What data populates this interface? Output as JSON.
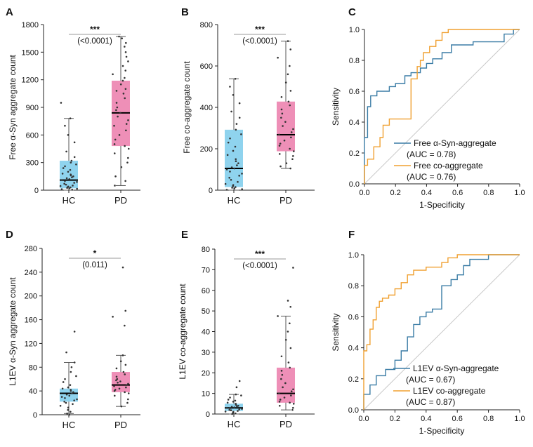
{
  "colors": {
    "hc_box": "#8fd3ee",
    "pd_box": "#ee8fb7",
    "roc_blue": "#3a7ca5",
    "roc_orange": "#f0a030",
    "axis": "#222222",
    "diag": "#c8c8c8",
    "dots": "#333333"
  },
  "chart_data": [
    {
      "id": "A",
      "type": "box",
      "panel_label": "A",
      "ylabel": "Free α-Syn aggregate count",
      "ylim": [
        0,
        1800
      ],
      "yticks": [
        0,
        300,
        600,
        900,
        1200,
        1500,
        1800
      ],
      "ytick_labels": [
        "0",
        "300",
        "600",
        "900",
        "1200",
        "1500",
        "1800"
      ],
      "categories": [
        "HC",
        "PD"
      ],
      "groups": [
        {
          "name": "HC",
          "min": 0,
          "q1": 20,
          "median": 110,
          "q3": 320,
          "max": 780,
          "points": [
            5,
            10,
            15,
            20,
            25,
            30,
            35,
            40,
            45,
            50,
            60,
            70,
            80,
            90,
            100,
            110,
            120,
            130,
            140,
            150,
            160,
            170,
            180,
            200,
            220,
            240,
            260,
            280,
            300,
            320,
            360,
            420,
            520,
            600,
            700,
            780,
            950
          ]
        },
        {
          "name": "PD",
          "min": 50,
          "q1": 480,
          "median": 840,
          "q3": 1190,
          "max": 1670,
          "points": [
            50,
            100,
            150,
            250,
            300,
            350,
            400,
            450,
            480,
            500,
            550,
            600,
            650,
            700,
            720,
            760,
            800,
            840,
            870,
            900,
            950,
            1000,
            1050,
            1080,
            1100,
            1150,
            1190,
            1220,
            1260,
            1300,
            1350,
            1400,
            1450,
            1500,
            1560,
            1600,
            1650,
            1670
          ]
        }
      ],
      "significance": {
        "stars": "***",
        "p": "(<0.0001)"
      }
    },
    {
      "id": "B",
      "type": "box",
      "panel_label": "B",
      "ylabel": "Free co-aggregate count",
      "ylim": [
        0,
        800
      ],
      "yticks": [
        0,
        200,
        400,
        600,
        800
      ],
      "ytick_labels": [
        "0",
        "200",
        "400",
        "600",
        "800"
      ],
      "categories": [
        "HC",
        "PD"
      ],
      "groups": [
        {
          "name": "HC",
          "min": 0,
          "q1": 15,
          "median": 105,
          "q3": 292,
          "max": 538,
          "points": [
            2,
            5,
            8,
            12,
            15,
            20,
            25,
            30,
            40,
            50,
            60,
            70,
            80,
            90,
            100,
            105,
            110,
            120,
            130,
            140,
            150,
            170,
            190,
            210,
            230,
            250,
            270,
            292,
            320,
            350,
            380,
            420,
            460,
            500,
            538
          ]
        },
        {
          "name": "PD",
          "min": 105,
          "q1": 188,
          "median": 268,
          "q3": 428,
          "max": 720,
          "points": [
            105,
            115,
            130,
            150,
            165,
            175,
            188,
            200,
            215,
            225,
            240,
            255,
            268,
            280,
            295,
            310,
            330,
            350,
            370,
            390,
            410,
            428,
            450,
            480,
            520,
            560,
            600,
            640,
            680,
            720
          ]
        }
      ],
      "significance": {
        "stars": "***",
        "p": "(<0.0001)"
      }
    },
    {
      "id": "C",
      "type": "line",
      "panel_label": "C",
      "xlabel": "1-Specificity",
      "ylabel": "Sensitivity",
      "xlim": [
        0,
        1
      ],
      "ylim": [
        0,
        1
      ],
      "ticks": [
        0,
        0.2,
        0.4,
        0.6,
        0.8,
        1.0
      ],
      "tick_labels": [
        "0.0",
        "0.2",
        "0.4",
        "0.6",
        "0.8",
        "1.0"
      ],
      "series": [
        {
          "name": "Free α-Syn-aggregate",
          "auc": "(AUC = 0.78)",
          "color_key": "roc_blue",
          "x": [
            0,
            0,
            0.02,
            0.02,
            0.04,
            0.04,
            0.08,
            0.08,
            0.16,
            0.16,
            0.2,
            0.2,
            0.26,
            0.26,
            0.3,
            0.3,
            0.36,
            0.36,
            0.4,
            0.4,
            0.44,
            0.44,
            0.5,
            0.5,
            0.56,
            0.56,
            0.7,
            0.7,
            0.9,
            0.9,
            0.96,
            0.96,
            1
          ],
          "y": [
            0,
            0.3,
            0.3,
            0.5,
            0.5,
            0.57,
            0.57,
            0.6,
            0.6,
            0.63,
            0.63,
            0.65,
            0.65,
            0.7,
            0.7,
            0.72,
            0.72,
            0.75,
            0.75,
            0.78,
            0.78,
            0.81,
            0.81,
            0.85,
            0.85,
            0.9,
            0.9,
            0.92,
            0.92,
            0.97,
            0.97,
            1,
            1
          ]
        },
        {
          "name": "Free co-aggregate",
          "auc": "(AUC = 0.76)",
          "color_key": "roc_orange",
          "x": [
            0,
            0,
            0.02,
            0.02,
            0.06,
            0.06,
            0.1,
            0.1,
            0.12,
            0.12,
            0.16,
            0.16,
            0.3,
            0.3,
            0.34,
            0.34,
            0.36,
            0.36,
            0.38,
            0.38,
            0.42,
            0.42,
            0.46,
            0.46,
            0.5,
            0.5,
            0.54,
            0.54,
            1
          ],
          "y": [
            0,
            0.12,
            0.12,
            0.16,
            0.16,
            0.24,
            0.24,
            0.3,
            0.3,
            0.38,
            0.38,
            0.42,
            0.42,
            0.68,
            0.68,
            0.76,
            0.76,
            0.8,
            0.8,
            0.85,
            0.85,
            0.89,
            0.89,
            0.93,
            0.93,
            0.98,
            0.98,
            1,
            1
          ]
        }
      ]
    },
    {
      "id": "D",
      "type": "box",
      "panel_label": "D",
      "ylabel": "L1EV α-Syn aggregate count",
      "ylim": [
        0,
        280
      ],
      "yticks": [
        0,
        40,
        80,
        120,
        160,
        200,
        240,
        280
      ],
      "ytick_labels": [
        "0",
        "40",
        "80",
        "120",
        "160",
        "200",
        "240",
        "280"
      ],
      "categories": [
        "HC",
        "PD"
      ],
      "groups": [
        {
          "name": "HC",
          "min": 2,
          "q1": 22,
          "median": 36,
          "q3": 44,
          "max": 88,
          "points": [
            0,
            2,
            5,
            8,
            12,
            15,
            18,
            20,
            22,
            24,
            26,
            28,
            30,
            32,
            34,
            36,
            38,
            40,
            42,
            44,
            46,
            50,
            55,
            60,
            65,
            72,
            80,
            88,
            105,
            140
          ]
        },
        {
          "name": "PD",
          "min": 14,
          "q1": 38,
          "median": 50,
          "q3": 72,
          "max": 100,
          "points": [
            14,
            20,
            26,
            32,
            36,
            38,
            40,
            42,
            44,
            46,
            48,
            50,
            52,
            54,
            56,
            58,
            60,
            64,
            68,
            72,
            78,
            84,
            90,
            100,
            150,
            165,
            175,
            248
          ]
        }
      ],
      "significance": {
        "stars": "*",
        "p": "(0.011)"
      }
    },
    {
      "id": "E",
      "type": "box",
      "panel_label": "E",
      "ylabel": "L1EV co-aggregate count",
      "ylim": [
        0,
        80
      ],
      "yticks": [
        0,
        10,
        20,
        30,
        40,
        50,
        60,
        70,
        80
      ],
      "ytick_labels": [
        "0",
        "10",
        "20",
        "30",
        "40",
        "50",
        "60",
        "70",
        "80"
      ],
      "categories": [
        "HC",
        "PD"
      ],
      "groups": [
        {
          "name": "HC",
          "min": 0,
          "q1": 1.5,
          "median": 3,
          "q3": 5,
          "max": 9.5,
          "points": [
            0,
            0.3,
            0.6,
            1,
            1.2,
            1.5,
            1.8,
            2,
            2.2,
            2.5,
            2.8,
            3,
            3.2,
            3.5,
            3.8,
            4,
            4.5,
            5,
            5.5,
            6,
            6.5,
            7,
            8,
            9,
            9.5,
            13,
            16
          ]
        },
        {
          "name": "PD",
          "min": 2,
          "q1": 5.5,
          "median": 10,
          "q3": 22.5,
          "max": 47.5,
          "points": [
            2,
            3,
            4,
            5,
            5.5,
            6,
            7,
            8,
            9,
            10,
            11,
            12,
            13,
            15,
            17,
            19,
            21,
            22.5,
            25,
            28,
            32,
            36,
            40,
            44,
            47.5,
            52,
            55,
            71
          ]
        }
      ],
      "significance": {
        "stars": "***",
        "p": "(<0.0001)"
      }
    },
    {
      "id": "F",
      "type": "line",
      "panel_label": "F",
      "xlabel": "1-Specificity",
      "ylabel": "Sensitivity",
      "xlim": [
        0,
        1
      ],
      "ylim": [
        0,
        1
      ],
      "ticks": [
        0,
        0.2,
        0.4,
        0.6,
        0.8,
        1.0
      ],
      "tick_labels": [
        "0.0",
        "0.2",
        "0.4",
        "0.6",
        "0.8",
        "1.0"
      ],
      "series": [
        {
          "name": "L1EV α-Syn-aggregate",
          "auc": "(AUC = 0.67)",
          "color_key": "roc_blue",
          "x": [
            0,
            0,
            0.04,
            0.04,
            0.08,
            0.08,
            0.14,
            0.14,
            0.2,
            0.2,
            0.24,
            0.24,
            0.28,
            0.28,
            0.32,
            0.32,
            0.36,
            0.36,
            0.4,
            0.4,
            0.44,
            0.44,
            0.5,
            0.5,
            0.56,
            0.56,
            0.6,
            0.6,
            0.64,
            0.64,
            0.68,
            0.68,
            0.8,
            0.8,
            1
          ],
          "y": [
            0,
            0.1,
            0.1,
            0.16,
            0.16,
            0.22,
            0.22,
            0.26,
            0.26,
            0.32,
            0.32,
            0.38,
            0.38,
            0.47,
            0.47,
            0.55,
            0.55,
            0.6,
            0.6,
            0.63,
            0.63,
            0.65,
            0.65,
            0.8,
            0.8,
            0.84,
            0.84,
            0.87,
            0.87,
            0.93,
            0.93,
            0.97,
            0.97,
            1,
            1
          ]
        },
        {
          "name": "L1EV co-aggregate",
          "auc": "(AUC = 0.87)",
          "color_key": "roc_orange",
          "x": [
            0,
            0,
            0.02,
            0.02,
            0.04,
            0.04,
            0.06,
            0.06,
            0.08,
            0.08,
            0.1,
            0.1,
            0.12,
            0.12,
            0.16,
            0.16,
            0.2,
            0.2,
            0.24,
            0.24,
            0.28,
            0.28,
            0.32,
            0.32,
            0.4,
            0.4,
            0.5,
            0.5,
            0.54,
            0.54,
            0.6,
            0.6,
            1
          ],
          "y": [
            0,
            0.38,
            0.38,
            0.42,
            0.42,
            0.52,
            0.52,
            0.58,
            0.58,
            0.66,
            0.66,
            0.7,
            0.7,
            0.72,
            0.72,
            0.74,
            0.74,
            0.78,
            0.78,
            0.82,
            0.82,
            0.87,
            0.87,
            0.9,
            0.9,
            0.92,
            0.92,
            0.95,
            0.95,
            0.98,
            0.98,
            1,
            1
          ]
        }
      ]
    }
  ]
}
